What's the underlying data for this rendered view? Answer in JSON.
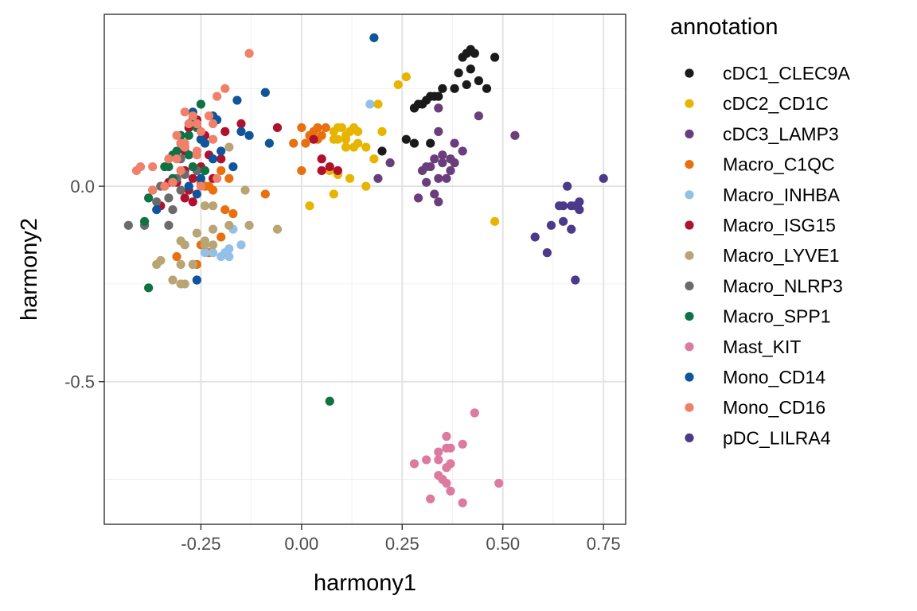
{
  "chart_data": {
    "type": "scatter",
    "xlabel": "harmony1",
    "ylabel": "harmony2",
    "xlim": [
      -0.49,
      0.805
    ],
    "ylim": [
      -0.865,
      0.44
    ],
    "xticks": [
      -0.25,
      0.0,
      0.25,
      0.5,
      0.75
    ],
    "xtick_labels": [
      "-0.25",
      "0.00",
      "0.25",
      "0.50",
      "0.75"
    ],
    "yticks": [
      0.0,
      -0.5
    ],
    "ytick_labels": [
      "0.0",
      "-0.5"
    ],
    "grid": true,
    "legend": {
      "title": "annotation",
      "position": "right"
    },
    "series": [
      {
        "name": "cDC1_CLEC9A",
        "color": "#1a1a1a",
        "points": [
          [
            0.42,
            0.35
          ],
          [
            0.41,
            0.34
          ],
          [
            0.4,
            0.33
          ],
          [
            0.43,
            0.34
          ],
          [
            0.48,
            0.33
          ],
          [
            0.42,
            0.3
          ],
          [
            0.39,
            0.29
          ],
          [
            0.44,
            0.27
          ],
          [
            0.41,
            0.26
          ],
          [
            0.46,
            0.25
          ],
          [
            0.38,
            0.25
          ],
          [
            0.35,
            0.25
          ],
          [
            0.32,
            0.23
          ],
          [
            0.33,
            0.23
          ],
          [
            0.31,
            0.22
          ],
          [
            0.34,
            0.23
          ],
          [
            0.29,
            0.21
          ],
          [
            0.3,
            0.21
          ],
          [
            0.28,
            0.2
          ],
          [
            0.26,
            0.12
          ],
          [
            0.28,
            0.11
          ],
          [
            0.32,
            0.11
          ],
          [
            0.2,
            0.09
          ]
        ]
      },
      {
        "name": "cDC2_CD1C",
        "color": "#e7b500",
        "points": [
          [
            0.26,
            0.28
          ],
          [
            0.24,
            0.26
          ],
          [
            0.19,
            0.21
          ],
          [
            0.1,
            0.15
          ],
          [
            0.09,
            0.15
          ],
          [
            0.08,
            0.14
          ],
          [
            0.13,
            0.15
          ],
          [
            0.14,
            0.14
          ],
          [
            0.12,
            0.14
          ],
          [
            0.11,
            0.13
          ],
          [
            0.2,
            0.14
          ],
          [
            0.11,
            0.12
          ],
          [
            0.14,
            0.11
          ],
          [
            0.16,
            0.1
          ],
          [
            0.13,
            0.1
          ],
          [
            0.11,
            0.1
          ],
          [
            0.08,
            0.12
          ],
          [
            0.09,
            0.12
          ],
          [
            0.18,
            0.07
          ],
          [
            0.07,
            0.04
          ],
          [
            0.09,
            0.03
          ],
          [
            0.12,
            0.02
          ],
          [
            0.16,
            0.0
          ],
          [
            0.08,
            -0.02
          ],
          [
            0.02,
            -0.05
          ],
          [
            0.48,
            -0.09
          ]
        ]
      },
      {
        "name": "cDC3_LAMP3",
        "color": "#6a3d7c",
        "points": [
          [
            0.44,
            0.18
          ],
          [
            0.53,
            0.13
          ],
          [
            0.34,
            0.2
          ],
          [
            0.34,
            0.14
          ],
          [
            0.38,
            0.11
          ],
          [
            0.4,
            0.09
          ],
          [
            0.35,
            0.08
          ],
          [
            0.33,
            0.07
          ],
          [
            0.37,
            0.07
          ],
          [
            0.35,
            0.06
          ],
          [
            0.38,
            0.06
          ],
          [
            0.31,
            0.05
          ],
          [
            0.32,
            0.05
          ],
          [
            0.3,
            0.04
          ],
          [
            0.37,
            0.04
          ],
          [
            0.34,
            0.02
          ],
          [
            0.36,
            0.02
          ],
          [
            0.22,
            0.06
          ],
          [
            0.19,
            0.02
          ],
          [
            0.31,
            0.01
          ],
          [
            0.33,
            -0.02
          ],
          [
            0.29,
            -0.03
          ],
          [
            0.34,
            -0.04
          ]
        ]
      },
      {
        "name": "Macro_C1QC",
        "color": "#e8700f",
        "points": [
          [
            0.0,
            0.15
          ],
          [
            0.04,
            0.15
          ],
          [
            0.03,
            0.14
          ],
          [
            0.05,
            0.13
          ],
          [
            0.02,
            0.13
          ],
          [
            0.06,
            0.15
          ],
          [
            0.04,
            0.12
          ],
          [
            -0.02,
            0.11
          ],
          [
            0.01,
            0.11
          ],
          [
            0.0,
            0.04
          ],
          [
            -0.09,
            -0.02
          ],
          [
            -0.18,
            0.02
          ],
          [
            -0.22,
            -0.01
          ],
          [
            -0.23,
            0.0
          ],
          [
            -0.24,
            0.0
          ],
          [
            -0.25,
            0.01
          ],
          [
            -0.19,
            -0.06
          ],
          [
            -0.17,
            -0.07
          ],
          [
            -0.2,
            -0.13
          ],
          [
            -0.25,
            -0.15
          ],
          [
            -0.31,
            -0.18
          ],
          [
            -0.26,
            -0.2
          ],
          [
            -0.23,
            -0.17
          ],
          [
            -0.2,
            0.04
          ]
        ]
      },
      {
        "name": "Macro_INHBA",
        "color": "#93bfe8",
        "points": [
          [
            0.17,
            0.21
          ],
          [
            -0.22,
            -0.17
          ],
          [
            -0.2,
            -0.18
          ],
          [
            -0.18,
            -0.18
          ],
          [
            -0.19,
            -0.17
          ],
          [
            -0.17,
            -0.11
          ],
          [
            -0.18,
            -0.16
          ],
          [
            -0.15,
            -0.15
          ],
          [
            -0.24,
            -0.17
          ],
          [
            -0.27,
            -0.2
          ],
          [
            -0.26,
            -0.24
          ]
        ]
      },
      {
        "name": "Macro_ISG15",
        "color": "#b0112e",
        "points": [
          [
            -0.06,
            0.15
          ],
          [
            -0.15,
            0.16
          ],
          [
            -0.26,
            0.17
          ],
          [
            -0.28,
            0.15
          ],
          [
            -0.19,
            0.14
          ],
          [
            -0.24,
            0.13
          ],
          [
            -0.3,
            0.11
          ],
          [
            -0.29,
            0.09
          ],
          [
            -0.23,
            0.08
          ],
          [
            -0.2,
            0.07
          ],
          [
            -0.25,
            0.05
          ],
          [
            -0.29,
            0.04
          ],
          [
            -0.31,
            0.01
          ],
          [
            -0.33,
            0.01
          ],
          [
            -0.27,
            0.02
          ],
          [
            -0.22,
            0.02
          ],
          [
            -0.28,
            -0.01
          ],
          [
            -0.29,
            -0.03
          ],
          [
            -0.35,
            -0.05
          ],
          [
            -0.27,
            -0.04
          ],
          [
            0.05,
            0.07
          ],
          [
            0.07,
            0.05
          ],
          [
            0.05,
            0.04
          ],
          [
            0.09,
            0.04
          ],
          [
            0.03,
            0.12
          ]
        ]
      },
      {
        "name": "Macro_LYVE1",
        "color": "#b9a474",
        "points": [
          [
            -0.18,
            0.1
          ],
          [
            -0.14,
            -0.01
          ],
          [
            -0.24,
            -0.05
          ],
          [
            -0.22,
            -0.05
          ],
          [
            -0.22,
            -0.11
          ],
          [
            -0.18,
            -0.1
          ],
          [
            -0.26,
            -0.12
          ],
          [
            -0.24,
            -0.14
          ],
          [
            -0.3,
            -0.14
          ],
          [
            -0.29,
            -0.15
          ],
          [
            -0.13,
            -0.1
          ],
          [
            -0.06,
            -0.11
          ],
          [
            -0.3,
            -0.2
          ],
          [
            -0.27,
            -0.2
          ],
          [
            -0.24,
            -0.15
          ],
          [
            -0.22,
            -0.15
          ],
          [
            -0.36,
            -0.2
          ],
          [
            -0.35,
            -0.19
          ],
          [
            -0.32,
            -0.24
          ],
          [
            -0.3,
            -0.25
          ],
          [
            -0.29,
            -0.25
          ]
        ]
      },
      {
        "name": "Macro_NLRP3",
        "color": "#6b6b6b",
        "points": [
          [
            -0.43,
            -0.1
          ],
          [
            -0.39,
            -0.1
          ],
          [
            -0.33,
            -0.1
          ],
          [
            -0.32,
            -0.06
          ],
          [
            -0.36,
            -0.04
          ],
          [
            -0.33,
            -0.03
          ],
          [
            -0.3,
            -0.01
          ],
          [
            -0.35,
            0.0
          ],
          [
            -0.37,
            -0.01
          ],
          [
            -0.32,
            0.01
          ],
          [
            -0.29,
            0.03
          ],
          [
            -0.31,
            0.02
          ],
          [
            -0.26,
            0.04
          ],
          [
            -0.3,
            0.07
          ]
        ]
      },
      {
        "name": "Macro_SPP1",
        "color": "#0e7245",
        "points": [
          [
            -0.25,
            0.21
          ],
          [
            -0.27,
            0.17
          ],
          [
            -0.26,
            0.15
          ],
          [
            -0.3,
            0.13
          ],
          [
            -0.28,
            0.13
          ],
          [
            -0.25,
            0.12
          ],
          [
            -0.29,
            0.1
          ],
          [
            -0.31,
            0.09
          ],
          [
            -0.28,
            0.08
          ],
          [
            -0.32,
            0.08
          ],
          [
            -0.33,
            0.05
          ],
          [
            -0.34,
            0.05
          ],
          [
            -0.27,
            0.05
          ],
          [
            -0.24,
            0.04
          ],
          [
            -0.32,
            0.02
          ],
          [
            -0.38,
            -0.03
          ],
          [
            -0.39,
            -0.09
          ],
          [
            -0.38,
            -0.26
          ],
          [
            0.07,
            -0.55
          ]
        ]
      },
      {
        "name": "Mast_KIT",
        "color": "#dd7aa0",
        "points": [
          [
            0.43,
            -0.58
          ],
          [
            0.36,
            -0.64
          ],
          [
            0.4,
            -0.66
          ],
          [
            0.37,
            -0.67
          ],
          [
            0.36,
            -0.67
          ],
          [
            0.34,
            -0.68
          ],
          [
            0.31,
            -0.7
          ],
          [
            0.34,
            -0.7
          ],
          [
            0.28,
            -0.71
          ],
          [
            0.37,
            -0.71
          ],
          [
            0.36,
            -0.72
          ],
          [
            0.34,
            -0.74
          ],
          [
            0.35,
            -0.75
          ],
          [
            0.36,
            -0.76
          ],
          [
            0.49,
            -0.76
          ],
          [
            0.37,
            -0.78
          ],
          [
            0.32,
            -0.8
          ],
          [
            0.4,
            -0.81
          ]
        ]
      },
      {
        "name": "Mono_CD14",
        "color": "#0f559b",
        "points": [
          [
            0.18,
            0.38
          ],
          [
            -0.09,
            0.24
          ],
          [
            -0.16,
            0.22
          ],
          [
            -0.27,
            0.19
          ],
          [
            -0.22,
            0.18
          ],
          [
            -0.21,
            0.17
          ],
          [
            -0.26,
            0.16
          ],
          [
            -0.15,
            0.14
          ],
          [
            -0.13,
            0.13
          ],
          [
            -0.25,
            0.12
          ],
          [
            -0.08,
            0.11
          ],
          [
            -0.24,
            0.11
          ],
          [
            -0.2,
            0.09
          ],
          [
            -0.22,
            0.07
          ],
          [
            -0.17,
            0.05
          ],
          [
            -0.25,
            0.02
          ],
          [
            -0.28,
            0.0
          ],
          [
            -0.26,
            -0.02
          ],
          [
            -0.36,
            -0.06
          ],
          [
            -0.26,
            -0.24
          ]
        ]
      },
      {
        "name": "Mono_CD16",
        "color": "#f08069",
        "points": [
          [
            -0.13,
            0.34
          ],
          [
            -0.19,
            0.25
          ],
          [
            -0.21,
            0.23
          ],
          [
            -0.29,
            0.19
          ],
          [
            -0.27,
            0.18
          ],
          [
            -0.23,
            0.18
          ],
          [
            -0.28,
            0.16
          ],
          [
            -0.26,
            0.16
          ],
          [
            -0.22,
            0.16
          ],
          [
            -0.25,
            0.14
          ],
          [
            -0.31,
            0.13
          ],
          [
            -0.22,
            0.12
          ],
          [
            -0.29,
            0.11
          ],
          [
            -0.3,
            0.11
          ],
          [
            -0.29,
            0.1
          ],
          [
            -0.26,
            0.09
          ],
          [
            -0.33,
            0.07
          ],
          [
            -0.31,
            0.07
          ],
          [
            -0.26,
            0.08
          ],
          [
            -0.4,
            0.05
          ],
          [
            -0.41,
            0.04
          ],
          [
            -0.37,
            0.05
          ],
          [
            -0.3,
            0.04
          ],
          [
            -0.21,
            0.02
          ],
          [
            -0.25,
            0.0
          ],
          [
            -0.32,
            0.01
          ],
          [
            -0.34,
            0.0
          ],
          [
            -0.37,
            -0.01
          ]
        ]
      },
      {
        "name": "pDC_LILRA4",
        "color": "#4b3a8a",
        "points": [
          [
            0.75,
            0.02
          ],
          [
            0.66,
            0.0
          ],
          [
            0.69,
            -0.04
          ],
          [
            0.68,
            -0.05
          ],
          [
            0.65,
            -0.05
          ],
          [
            0.64,
            -0.05
          ],
          [
            0.67,
            -0.05
          ],
          [
            0.69,
            -0.06
          ],
          [
            0.65,
            -0.09
          ],
          [
            0.62,
            -0.1
          ],
          [
            0.67,
            -0.11
          ],
          [
            0.58,
            -0.13
          ],
          [
            0.61,
            -0.17
          ],
          [
            0.68,
            -0.24
          ]
        ]
      }
    ]
  }
}
